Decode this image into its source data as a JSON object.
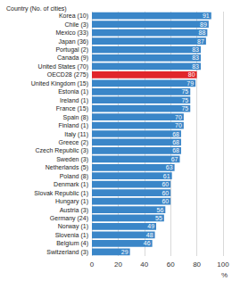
{
  "chart_data": {
    "type": "bar",
    "orientation": "horizontal",
    "title": "Country (No. of cities)",
    "xlabel": "%",
    "categories": [
      "Korea (10)",
      "Chile (3)",
      "Mexico (33)",
      "Japan (36)",
      "Portugal (2)",
      "Canada (9)",
      "United States (70)",
      "OECD28 (275)",
      "United Kingdom (15)",
      "Estonia (1)",
      "Ireland (1)",
      "France (15)",
      "Spain (8)",
      "Finland (1)",
      "Italy (11)",
      "Greece (2)",
      "Czech Republic (3)",
      "Sweden (3)",
      "Netherlands (5)",
      "Poland (8)",
      "Denmark (1)",
      "Slovak Republic (1)",
      "Hungary (1)",
      "Austria (3)",
      "Germany (24)",
      "Norway (1)",
      "Slovenia (1)",
      "Belgium (4)",
      "Switzerland (3)"
    ],
    "values": [
      91,
      89,
      88,
      87,
      83,
      83,
      83,
      80,
      79,
      75,
      75,
      75,
      70,
      70,
      68,
      68,
      68,
      67,
      63,
      61,
      60,
      60,
      60,
      56,
      55,
      49,
      48,
      46,
      29
    ],
    "colors": [
      "#3a86c8",
      "#3a86c8",
      "#3a86c8",
      "#3a86c8",
      "#3a86c8",
      "#3a86c8",
      "#3a86c8",
      "#e0262b",
      "#3a86c8",
      "#3a86c8",
      "#3a86c8",
      "#3a86c8",
      "#3a86c8",
      "#3a86c8",
      "#3a86c8",
      "#3a86c8",
      "#3a86c8",
      "#3a86c8",
      "#3a86c8",
      "#3a86c8",
      "#3a86c8",
      "#3a86c8",
      "#3a86c8",
      "#3a86c8",
      "#3a86c8",
      "#3a86c8",
      "#3a86c8",
      "#3a86c8",
      "#3a86c8"
    ],
    "xlim": [
      0,
      100
    ],
    "xticks": [
      0,
      20,
      40,
      60,
      80,
      100
    ],
    "grid": true,
    "data_labels": true
  }
}
